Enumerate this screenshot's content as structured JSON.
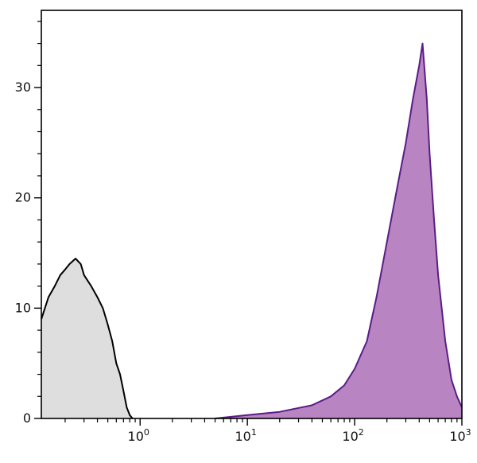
{
  "chart_data": {
    "type": "area",
    "title": "",
    "xlabel": "",
    "ylabel": "",
    "x_scale": "log",
    "xlim": [
      0.12,
      1000
    ],
    "ylim": [
      0,
      37
    ],
    "x_ticks": [
      {
        "base": "10",
        "exp": "0",
        "value": 1
      },
      {
        "base": "10",
        "exp": "1",
        "value": 10
      },
      {
        "base": "10",
        "exp": "2",
        "value": 100
      },
      {
        "base": "10",
        "exp": "3",
        "value": 1000
      }
    ],
    "y_ticks": [
      {
        "label": "0",
        "value": 0
      },
      {
        "label": "10",
        "value": 10
      },
      {
        "label": "20",
        "value": 20
      },
      {
        "label": "30",
        "value": 30
      }
    ],
    "grid": false,
    "legend": "none",
    "series": [
      {
        "fill": "#dedede",
        "stroke": "#000000",
        "x": [
          0.12,
          0.14,
          0.16,
          0.18,
          0.2,
          0.22,
          0.25,
          0.28,
          0.3,
          0.35,
          0.4,
          0.45,
          0.5,
          0.55,
          0.6,
          0.65,
          0.7,
          0.75,
          0.8,
          0.85
        ],
        "y": [
          9,
          11,
          12,
          13,
          13.5,
          14,
          14.5,
          14,
          13,
          12,
          11,
          10,
          8.5,
          7,
          5,
          4,
          2.5,
          1,
          0.3,
          0
        ]
      },
      {
        "fill": "#b885c2",
        "stroke": "#5b1c86",
        "x": [
          5,
          10,
          20,
          40,
          60,
          80,
          100,
          130,
          160,
          200,
          250,
          300,
          350,
          400,
          430,
          470,
          500,
          550,
          600,
          700,
          800,
          900,
          1000
        ],
        "y": [
          0,
          0.3,
          0.6,
          1.2,
          2,
          3,
          4.5,
          7,
          11,
          16,
          21,
          25,
          29,
          32,
          34,
          29,
          24,
          18,
          13,
          7,
          3.5,
          2,
          1
        ]
      }
    ]
  }
}
